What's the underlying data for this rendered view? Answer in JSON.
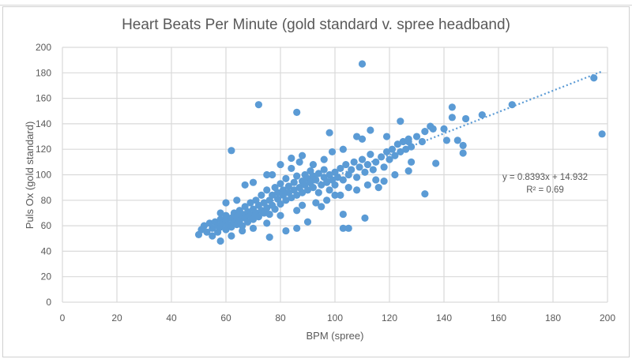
{
  "chart_data": {
    "type": "scatter",
    "title": "Heart Beats Per Minute (gold standard v. spree headband)",
    "xlabel": "BPM (spree)",
    "ylabel": "Puls Ox (gold standard)",
    "xlim": [
      0,
      200
    ],
    "ylim": [
      0,
      200
    ],
    "x_ticks": [
      "0",
      "20",
      "40",
      "60",
      "80",
      "100",
      "120",
      "140",
      "160",
      "180",
      "200"
    ],
    "y_ticks": [
      "0",
      "20",
      "40",
      "60",
      "80",
      "100",
      "120",
      "140",
      "160",
      "180",
      "200"
    ],
    "grid": true,
    "legend": "none",
    "marker_color": "#5b9bd5",
    "trendline": {
      "type": "linear",
      "style": "dotted",
      "slope": 0.8393,
      "intercept": 14.932,
      "equation_label": "y = 0.8393x + 14.932",
      "r2_label": "R² = 0.69"
    },
    "points": [
      [
        110,
        187
      ],
      [
        72,
        155
      ],
      [
        86,
        149
      ],
      [
        62,
        119
      ],
      [
        98,
        133
      ],
      [
        195,
        176
      ],
      [
        198,
        132
      ],
      [
        165,
        155
      ],
      [
        154,
        147
      ],
      [
        148,
        144
      ],
      [
        143,
        153
      ],
      [
        143,
        145
      ],
      [
        145,
        127
      ],
      [
        147,
        123
      ],
      [
        147,
        117
      ],
      [
        137,
        109
      ],
      [
        133,
        85
      ],
      [
        141,
        127
      ],
      [
        127,
        103
      ],
      [
        111,
        66
      ],
      [
        103,
        58
      ],
      [
        105,
        58
      ],
      [
        103,
        69
      ],
      [
        90,
        63
      ],
      [
        95,
        75
      ],
      [
        76,
        51
      ],
      [
        82,
        56
      ],
      [
        86,
        58
      ],
      [
        50,
        53
      ],
      [
        58,
        48
      ],
      [
        51,
        57
      ],
      [
        52,
        60
      ],
      [
        53,
        55
      ],
      [
        54,
        62
      ],
      [
        55,
        58
      ],
      [
        55,
        52
      ],
      [
        56,
        63
      ],
      [
        57,
        60
      ],
      [
        57,
        55
      ],
      [
        58,
        65
      ],
      [
        58,
        59
      ],
      [
        59,
        62
      ],
      [
        60,
        57
      ],
      [
        60,
        64
      ],
      [
        60,
        68
      ],
      [
        61,
        61
      ],
      [
        62,
        66
      ],
      [
        62,
        59
      ],
      [
        63,
        70
      ],
      [
        63,
        63
      ],
      [
        64,
        61
      ],
      [
        64,
        67
      ],
      [
        65,
        72
      ],
      [
        65,
        64
      ],
      [
        66,
        60
      ],
      [
        66,
        69
      ],
      [
        67,
        75
      ],
      [
        67,
        66
      ],
      [
        68,
        63
      ],
      [
        68,
        71
      ],
      [
        69,
        68
      ],
      [
        69,
        78
      ],
      [
        70,
        73
      ],
      [
        70,
        65
      ],
      [
        71,
        70
      ],
      [
        71,
        80
      ],
      [
        72,
        76
      ],
      [
        72,
        67
      ],
      [
        73,
        72
      ],
      [
        73,
        84
      ],
      [
        74,
        78
      ],
      [
        74,
        70
      ],
      [
        75,
        74
      ],
      [
        75,
        88
      ],
      [
        76,
        80
      ],
      [
        76,
        69
      ],
      [
        77,
        84
      ],
      [
        77,
        76
      ],
      [
        78,
        90
      ],
      [
        78,
        73
      ],
      [
        79,
        81
      ],
      [
        79,
        86
      ],
      [
        80,
        77
      ],
      [
        80,
        93
      ],
      [
        81,
        84
      ],
      [
        81,
        88
      ],
      [
        82,
        80
      ],
      [
        82,
        97
      ],
      [
        83,
        86
      ],
      [
        83,
        91
      ],
      [
        84,
        82
      ],
      [
        84,
        105
      ],
      [
        85,
        88
      ],
      [
        85,
        94
      ],
      [
        86,
        84
      ],
      [
        86,
        99
      ],
      [
        87,
        90
      ],
      [
        87,
        110
      ],
      [
        88,
        86
      ],
      [
        88,
        95
      ],
      [
        89,
        92
      ],
      [
        89,
        100
      ],
      [
        90,
        88
      ],
      [
        90,
        97
      ],
      [
        91,
        94
      ],
      [
        91,
        103
      ],
      [
        92,
        90
      ],
      [
        92,
        99
      ],
      [
        93,
        96
      ],
      [
        94,
        101
      ],
      [
        94,
        86
      ],
      [
        95,
        92
      ],
      [
        96,
        98
      ],
      [
        96,
        104
      ],
      [
        97,
        94
      ],
      [
        98,
        100
      ],
      [
        98,
        88
      ],
      [
        99,
        96
      ],
      [
        100,
        102
      ],
      [
        100,
        92
      ],
      [
        101,
        98
      ],
      [
        102,
        105
      ],
      [
        103,
        96
      ],
      [
        104,
        108
      ],
      [
        105,
        100
      ],
      [
        106,
        104
      ],
      [
        107,
        110
      ],
      [
        108,
        98
      ],
      [
        109,
        106
      ],
      [
        110,
        112
      ],
      [
        111,
        102
      ],
      [
        112,
        108
      ],
      [
        113,
        116
      ],
      [
        114,
        104
      ],
      [
        115,
        110
      ],
      [
        116,
        90
      ],
      [
        117,
        114
      ],
      [
        118,
        106
      ],
      [
        119,
        118
      ],
      [
        120,
        112
      ],
      [
        121,
        120
      ],
      [
        122,
        115
      ],
      [
        123,
        124
      ],
      [
        124,
        118
      ],
      [
        125,
        126
      ],
      [
        126,
        120
      ],
      [
        127,
        128
      ],
      [
        128,
        122
      ],
      [
        130,
        130
      ],
      [
        132,
        126
      ],
      [
        133,
        134
      ],
      [
        135,
        138
      ],
      [
        136,
        136
      ],
      [
        140,
        136
      ],
      [
        93,
        78
      ],
      [
        97,
        80
      ],
      [
        102,
        84
      ],
      [
        86,
        72
      ],
      [
        80,
        68
      ],
      [
        70,
        58
      ],
      [
        66,
        56
      ],
      [
        62,
        52
      ],
      [
        75,
        62
      ],
      [
        88,
        76
      ],
      [
        108,
        88
      ],
      [
        112,
        92
      ],
      [
        115,
        96
      ],
      [
        67,
        92
      ],
      [
        70,
        94
      ],
      [
        77,
        100
      ],
      [
        80,
        108
      ],
      [
        84,
        113
      ],
      [
        88,
        115
      ],
      [
        92,
        108
      ],
      [
        96,
        112
      ],
      [
        75,
        100
      ],
      [
        60,
        78
      ],
      [
        64,
        80
      ],
      [
        58,
        70
      ],
      [
        108,
        130
      ],
      [
        110,
        128
      ],
      [
        113,
        135
      ],
      [
        119,
        130
      ],
      [
        124,
        142
      ],
      [
        127,
        126
      ],
      [
        118,
        95
      ],
      [
        122,
        100
      ],
      [
        105,
        90
      ],
      [
        100,
        84
      ],
      [
        128,
        110
      ],
      [
        99,
        118
      ],
      [
        103,
        120
      ]
    ]
  }
}
